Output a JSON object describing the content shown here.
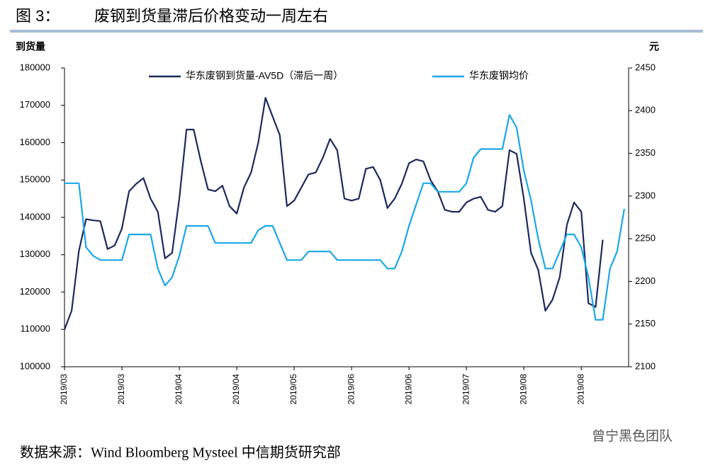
{
  "chart_data": {
    "type": "line",
    "figure_label": "图 3：",
    "title": "废钢到货量滞后价格变动一周左右",
    "y_axis_label": "到货量",
    "y2_axis_label": "元",
    "source": "数据来源：Wind Bloomberg Mysteel 中信期货研究部",
    "watermark": "曾宁黑色团队",
    "categories": [
      "2019/03",
      null,
      null,
      null,
      null,
      null,
      null,
      null,
      "2019/03",
      null,
      null,
      null,
      null,
      null,
      null,
      null,
      "2019/04",
      null,
      null,
      null,
      null,
      null,
      null,
      null,
      "2019/04",
      null,
      null,
      null,
      null,
      null,
      null,
      null,
      "2019/05",
      null,
      null,
      null,
      null,
      null,
      null,
      null,
      "2019/06",
      null,
      null,
      null,
      null,
      null,
      null,
      null,
      "2019/06",
      null,
      null,
      null,
      null,
      null,
      null,
      null,
      "2019/07",
      null,
      null,
      null,
      null,
      null,
      null,
      null,
      "2019/08",
      null,
      null,
      null,
      null,
      null,
      null,
      null,
      "2019/08",
      null,
      null,
      null,
      null,
      null,
      null
    ],
    "ylim": [
      100000,
      180000
    ],
    "yticks": [
      100000,
      110000,
      120000,
      130000,
      140000,
      150000,
      160000,
      170000,
      180000
    ],
    "y2lim": [
      2100,
      2450
    ],
    "y2ticks": [
      2100,
      2150,
      2200,
      2250,
      2300,
      2350,
      2400,
      2450
    ],
    "series": [
      {
        "name": "华东废钢到货量-AV5D（滞后一周）",
        "color": "#1b2a5c",
        "values": [
          110000,
          115000,
          131000,
          139500,
          139200,
          139000,
          131500,
          132500,
          137000,
          147000,
          149000,
          150500,
          145000,
          141500,
          129000,
          130500,
          145000,
          163500,
          163500,
          155000,
          147500,
          147000,
          148500,
          143000,
          141000,
          148000,
          152000,
          160000,
          172000,
          167000,
          162000,
          143000,
          144500,
          148000,
          151500,
          152000,
          156000,
          161000,
          158000,
          145000,
          144500,
          145000,
          153000,
          153500,
          150000,
          142500,
          145000,
          149000,
          154500,
          155500,
          155000,
          150000,
          147000,
          142000,
          141500,
          141500,
          144000,
          145000,
          145500,
          142000,
          141500,
          143000,
          158000,
          157000,
          145000,
          130500,
          126000,
          115000,
          118000,
          124000,
          138000,
          144000,
          141500,
          117000,
          116000,
          134000,
          null,
          null,
          null
        ]
      },
      {
        "name": "华东废钢均价",
        "color": "#1aa7e8",
        "axis": "y2",
        "values": [
          2315,
          2315,
          2315,
          2240,
          2230,
          2225,
          2225,
          2225,
          2225,
          2255,
          2255,
          2255,
          2255,
          2215,
          2195,
          2205,
          2230,
          2265,
          2265,
          2265,
          2265,
          2245,
          2245,
          2245,
          2245,
          2245,
          2245,
          2260,
          2265,
          2265,
          2245,
          2225,
          2225,
          2225,
          2235,
          2235,
          2235,
          2235,
          2225,
          2225,
          2225,
          2225,
          2225,
          2225,
          2225,
          2215,
          2215,
          2235,
          2265,
          2290,
          2315,
          2315,
          2305,
          2305,
          2305,
          2305,
          2315,
          2345,
          2355,
          2355,
          2355,
          2355,
          2395,
          2380,
          2330,
          2295,
          2250,
          2215,
          2215,
          2235,
          2255,
          2255,
          2240,
          2205,
          2155,
          2155,
          2215,
          2235,
          2285
        ]
      }
    ]
  }
}
